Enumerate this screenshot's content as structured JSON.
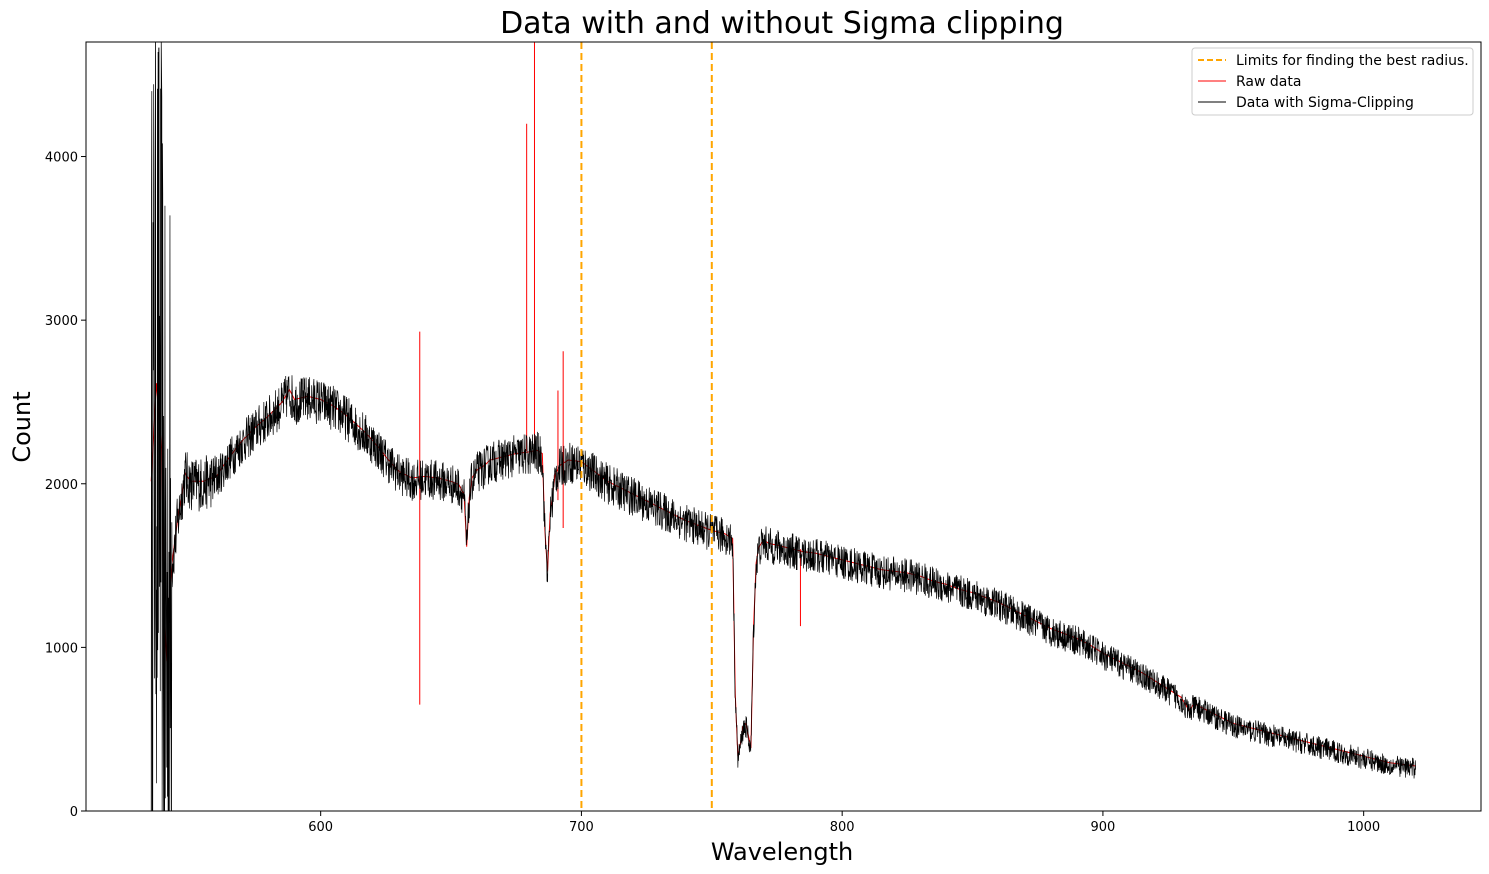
{
  "chart_data": {
    "type": "line",
    "title": "Data with and without Sigma clipping",
    "xlabel": "Wavelength",
    "ylabel": "Count",
    "xlim": [
      510,
      1045
    ],
    "ylim": [
      0,
      4700
    ],
    "xticks": [
      600,
      700,
      800,
      900,
      1000
    ],
    "yticks": [
      0,
      1000,
      2000,
      3000,
      4000
    ],
    "grid": false,
    "legend_position": "top-right",
    "legend": [
      "Limits for finding the best radius.",
      "Raw data",
      "Data with Sigma-Clipping"
    ],
    "vlines": {
      "name": "Limits for finding the best radius.",
      "color": "#ffa500",
      "style": "dashed",
      "x": [
        700,
        750
      ]
    },
    "series": [
      {
        "name": "Raw data",
        "color": "#ff0000",
        "spikes": [
          {
            "x": 638,
            "y_low": 650,
            "y_high": 2930
          },
          {
            "x": 679,
            "y_low": 2200,
            "y_high": 4200
          },
          {
            "x": 682,
            "y_low": 2200,
            "y_high": 4700
          },
          {
            "x": 691,
            "y_low": 1900,
            "y_high": 2570
          },
          {
            "x": 693,
            "y_low": 1730,
            "y_high": 2810
          },
          {
            "x": 784,
            "y_low": 1130,
            "y_high": 1600
          }
        ]
      },
      {
        "name": "Data with Sigma-Clipping",
        "color": "#000000",
        "x": [
          535,
          537,
          539,
          540,
          541,
          542,
          543,
          545,
          548,
          550,
          555,
          560,
          565,
          570,
          575,
          580,
          585,
          588,
          590,
          595,
          600,
          605,
          610,
          615,
          620,
          625,
          630,
          635,
          640,
          645,
          650,
          653,
          655,
          656,
          657,
          658,
          660,
          663,
          665,
          670,
          675,
          680,
          683,
          685,
          686,
          687,
          688,
          690,
          692,
          695,
          700,
          705,
          710,
          715,
          720,
          725,
          730,
          735,
          740,
          745,
          750,
          755,
          758,
          759,
          760,
          761,
          762,
          763,
          764,
          765,
          766,
          767,
          768,
          770,
          772,
          775,
          780,
          785,
          790,
          795,
          800,
          805,
          810,
          815,
          820,
          825,
          830,
          835,
          840,
          845,
          850,
          855,
          860,
          865,
          870,
          875,
          880,
          885,
          890,
          895,
          900,
          905,
          910,
          915,
          920,
          925,
          930,
          933,
          935,
          940,
          945,
          950,
          955,
          960,
          965,
          970,
          975,
          980,
          985,
          990,
          995,
          1000,
          1005,
          1010,
          1015,
          1020
        ],
        "y": [
          2000,
          2600,
          2200,
          1200,
          900,
          1300,
          1500,
          1750,
          2050,
          2000,
          2000,
          2030,
          2150,
          2250,
          2330,
          2400,
          2480,
          2560,
          2500,
          2520,
          2500,
          2460,
          2400,
          2330,
          2250,
          2150,
          2060,
          2020,
          2030,
          2020,
          2000,
          1980,
          1920,
          1600,
          1900,
          2020,
          2070,
          2100,
          2130,
          2150,
          2170,
          2180,
          2190,
          2170,
          1700,
          1450,
          1800,
          2050,
          2100,
          2130,
          2120,
          2060,
          2000,
          1960,
          1920,
          1880,
          1840,
          1800,
          1760,
          1730,
          1700,
          1680,
          1650,
          700,
          320,
          400,
          500,
          520,
          450,
          370,
          1100,
          1500,
          1600,
          1640,
          1620,
          1610,
          1590,
          1570,
          1560,
          1540,
          1520,
          1500,
          1480,
          1460,
          1450,
          1440,
          1420,
          1390,
          1370,
          1340,
          1320,
          1290,
          1260,
          1220,
          1180,
          1140,
          1100,
          1070,
          1040,
          1000,
          950,
          910,
          870,
          830,
          780,
          730,
          680,
          600,
          640,
          600,
          560,
          520,
          500,
          480,
          460,
          440,
          420,
          400,
          380,
          360,
          340,
          320,
          300,
          280,
          270,
          260
        ]
      }
    ]
  }
}
